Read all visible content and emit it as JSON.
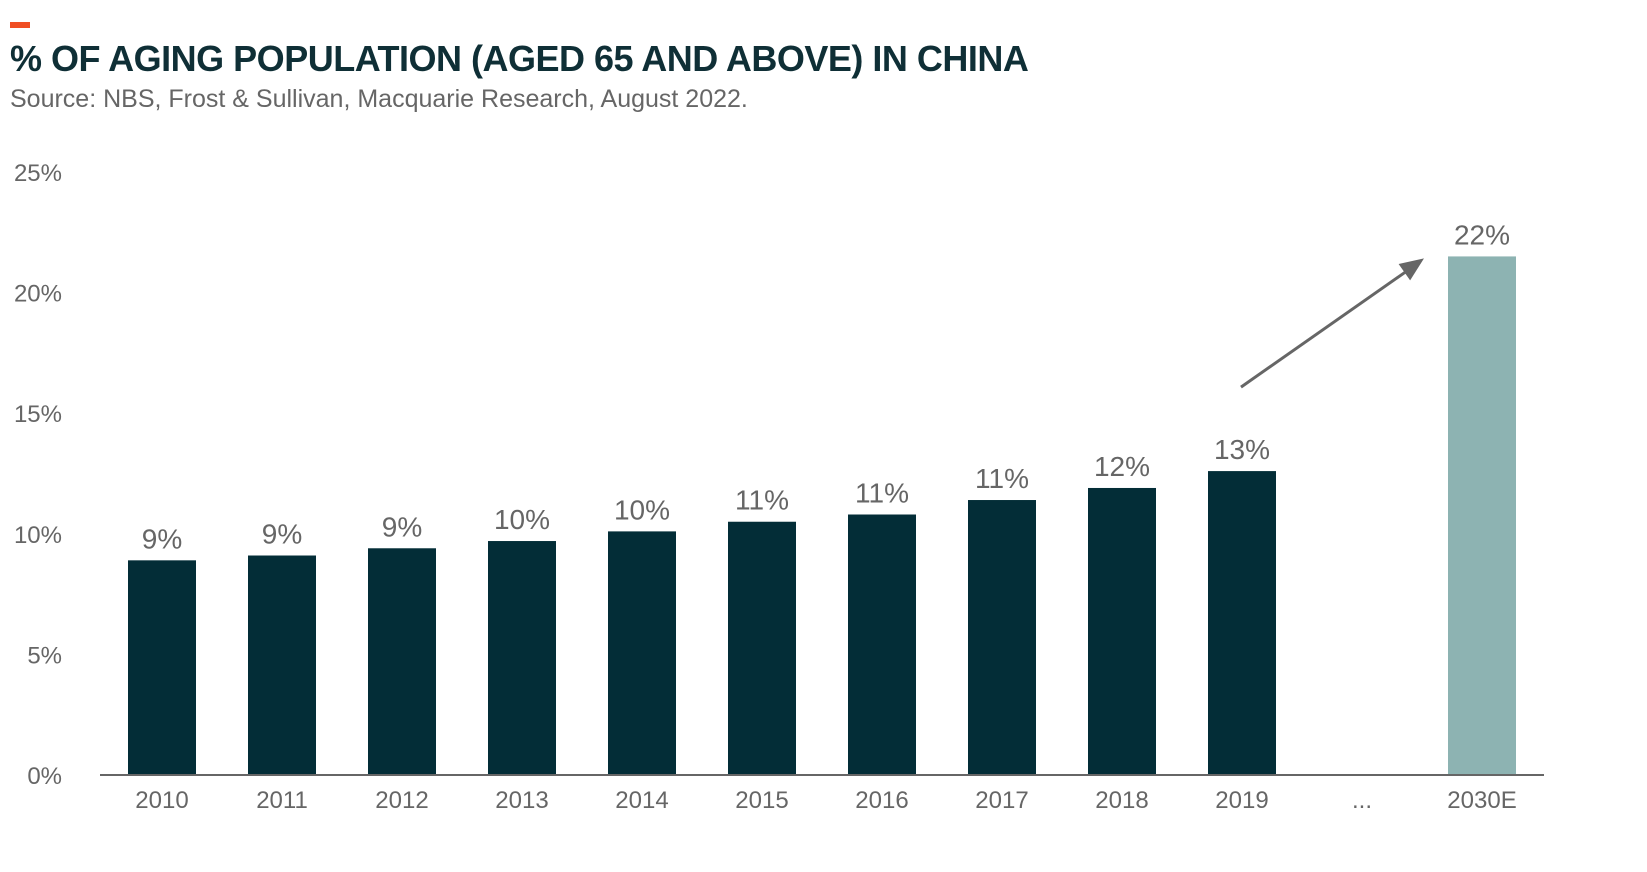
{
  "header": {
    "title": "% OF AGING POPULATION (AGED 65 AND ABOVE) IN CHINA",
    "subtitle": "Source: NBS, Frost & Sullivan, Macquarie Research, August 2022.",
    "accent_color": "#f04e23"
  },
  "chart_data": {
    "type": "bar",
    "title": "% OF AGING POPULATION (AGED 65 AND ABOVE) IN CHINA",
    "xlabel": "",
    "ylabel": "",
    "ylim": [
      0,
      25
    ],
    "y_ticks": [
      "0%",
      "5%",
      "10%",
      "15%",
      "20%",
      "25%"
    ],
    "y_tick_values": [
      0,
      5,
      10,
      15,
      20,
      25
    ],
    "categories": [
      "2010",
      "2011",
      "2012",
      "2013",
      "2014",
      "2015",
      "2016",
      "2017",
      "2018",
      "2019",
      "...",
      "2030E"
    ],
    "values": [
      8.9,
      9.1,
      9.4,
      9.7,
      10.1,
      10.5,
      10.8,
      11.4,
      11.9,
      12.6,
      null,
      21.5
    ],
    "data_labels": [
      "9%",
      "9%",
      "9%",
      "10%",
      "10%",
      "11%",
      "11%",
      "11%",
      "12%",
      "13%",
      "",
      "22%"
    ],
    "colors": {
      "actual": "#032d37",
      "forecast": "#8db3b2",
      "axis": "#666666",
      "arrow": "#666666"
    },
    "grid": false,
    "legend": "none",
    "annotations": [
      {
        "type": "arrow",
        "from_category": "2019",
        "to_category": "2030E",
        "description": ""
      }
    ]
  }
}
